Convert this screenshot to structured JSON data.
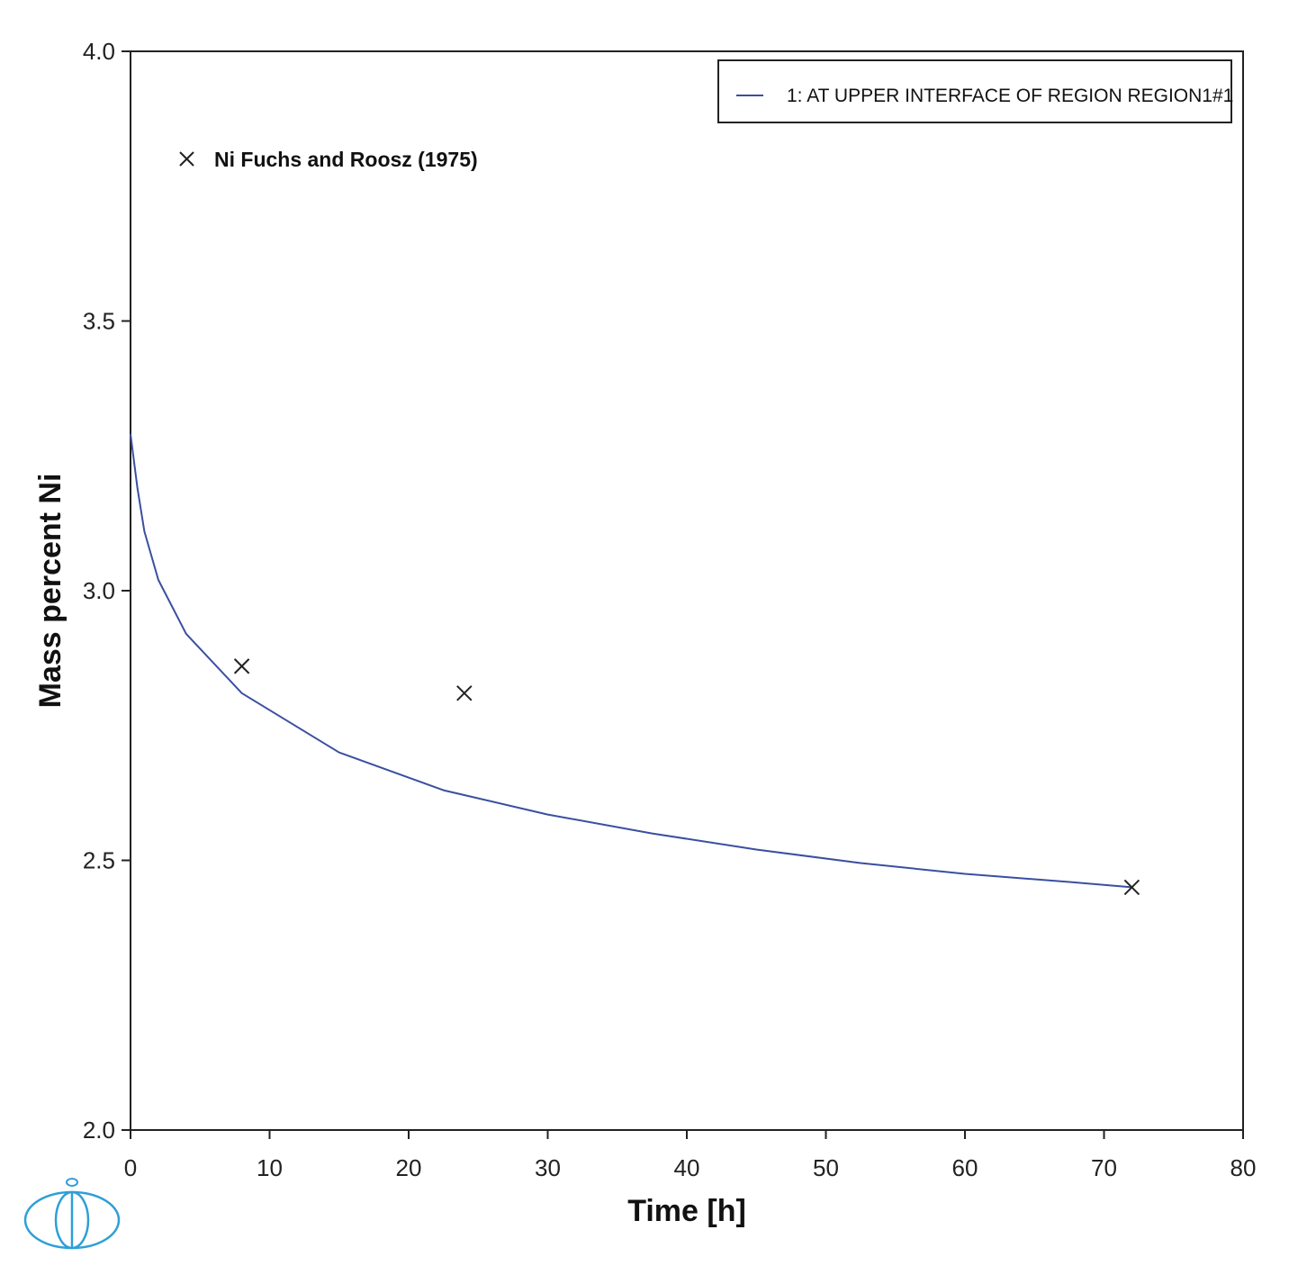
{
  "chart_data": {
    "type": "line",
    "xlabel": "Time [h]",
    "ylabel": "Mass percent Ni",
    "xlim": [
      0,
      80
    ],
    "ylim": [
      2.0,
      4.0
    ],
    "xticks": [
      0,
      10,
      20,
      30,
      40,
      50,
      60,
      70,
      80
    ],
    "yticks": [
      2.0,
      2.5,
      3.0,
      3.5,
      4.0
    ],
    "xtick_labels": [
      "0",
      "10",
      "20",
      "30",
      "40",
      "50",
      "60",
      "70",
      "80"
    ],
    "ytick_labels": [
      "2.0",
      "2.5",
      "3.0",
      "3.5",
      "4.0"
    ],
    "grid": false,
    "legend_position": "top-right",
    "series": [
      {
        "name": "1:  AT UPPER INTERFACE OF REGION REGION1#1",
        "type": "line",
        "color": "#3a4fa0",
        "x": [
          0,
          0.5,
          1,
          2,
          4,
          8,
          15,
          22.5,
          30,
          37.5,
          45,
          52.5,
          60,
          67.5,
          72
        ],
        "y": [
          3.29,
          3.19,
          3.11,
          3.02,
          2.92,
          2.81,
          2.7,
          2.63,
          2.585,
          2.55,
          2.52,
          2.495,
          2.475,
          2.46,
          2.45
        ]
      },
      {
        "name": "Ni Fuchs and Roosz (1975)",
        "type": "scatter",
        "marker": "x",
        "color": "#222222",
        "x": [
          8,
          24,
          72
        ],
        "y": [
          2.86,
          2.81,
          2.45
        ]
      }
    ]
  }
}
